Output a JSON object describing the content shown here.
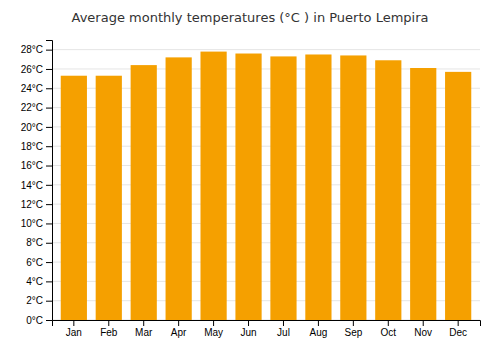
{
  "chart_data": {
    "type": "bar",
    "title": "Average monthly temperatures (°C ) in Puerto Lempira",
    "categories": [
      "Jan",
      "Feb",
      "Mar",
      "Apr",
      "May",
      "Jun",
      "Jul",
      "Aug",
      "Sep",
      "Oct",
      "Nov",
      "Dec"
    ],
    "values": [
      25.3,
      25.3,
      26.4,
      27.2,
      27.8,
      27.6,
      27.3,
      27.5,
      27.4,
      26.9,
      26.1,
      25.7
    ],
    "color": "#F5A000",
    "ylim": [
      0,
      29
    ],
    "yticks": [
      {
        "value": 0,
        "label": "0°C"
      },
      {
        "value": 2,
        "label": "2°C"
      },
      {
        "value": 4,
        "label": "4°C"
      },
      {
        "value": 6,
        "label": "6°C"
      },
      {
        "value": 8,
        "label": "8°C"
      },
      {
        "value": 10,
        "label": "10°C"
      },
      {
        "value": 12,
        "label": "12°C"
      },
      {
        "value": 14,
        "label": "14°C"
      },
      {
        "value": 16,
        "label": "16°C"
      },
      {
        "value": 18,
        "label": "18°C"
      },
      {
        "value": 20,
        "label": "20°C"
      },
      {
        "value": 22,
        "label": "22°C"
      },
      {
        "value": 24,
        "label": "24°C"
      },
      {
        "value": 26,
        "label": "26°C"
      },
      {
        "value": 28,
        "label": "28°C"
      }
    ],
    "grid": true
  }
}
